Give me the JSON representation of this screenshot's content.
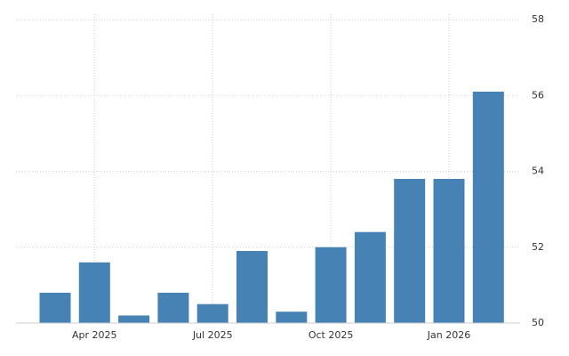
{
  "chart_data": {
    "type": "bar",
    "categories": [
      null,
      "Apr 2025",
      null,
      null,
      "Jul 2025",
      null,
      null,
      "Oct 2025",
      null,
      null,
      "Jan 2026",
      null
    ],
    "values": [
      50.8,
      51.6,
      50.2,
      50.8,
      50.5,
      51.9,
      50.3,
      52.0,
      52.4,
      53.8,
      53.8,
      56.1
    ],
    "color": "#4682b4",
    "ylim": [
      50,
      58
    ],
    "yticks": [
      50,
      52,
      54,
      56,
      58
    ],
    "grid": true
  }
}
